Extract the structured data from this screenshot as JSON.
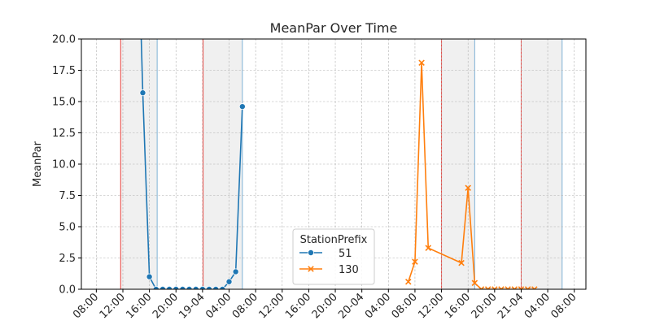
{
  "chart_data": {
    "type": "line",
    "title": "MeanPar Over Time",
    "xlabel": "",
    "ylabel": "MeanPar",
    "ylim": [
      0,
      20
    ],
    "xlim": [
      "2023-03-18T05:45",
      "2023-03-21T09:45"
    ],
    "yticks": [
      0.0,
      2.5,
      5.0,
      7.5,
      10.0,
      12.5,
      15.0,
      17.5,
      20.0
    ],
    "ytick_labels": [
      "0.0",
      "2.5",
      "5.0",
      "7.5",
      "10.0",
      "12.5",
      "15.0",
      "17.5",
      "20.0"
    ],
    "xticks": [
      "2023-03-18T08:00",
      "2023-03-18T12:00",
      "2023-03-18T16:00",
      "2023-03-18T20:00",
      "2023-03-19T00:00",
      "2023-03-19T04:00",
      "2023-03-19T08:00",
      "2023-03-19T12:00",
      "2023-03-19T16:00",
      "2023-03-19T20:00",
      "2023-03-20T00:00",
      "2023-03-20T04:00",
      "2023-03-20T08:00",
      "2023-03-20T12:00",
      "2023-03-20T16:00",
      "2023-03-20T20:00",
      "2023-03-21T00:00",
      "2023-03-21T04:00",
      "2023-03-21T08:00"
    ],
    "xtick_labels": [
      "08:00",
      "12:00",
      "16:00",
      "20:00",
      "19-04",
      "04:00",
      "08:00",
      "12:00",
      "16:00",
      "20:00",
      "20-04",
      "04:00",
      "08:00",
      "12:00",
      "16:00",
      "20:00",
      "21-04",
      "04:00",
      "08:00"
    ],
    "grid": true,
    "legend": {
      "title": "StationPrefix",
      "placement": "lower-center"
    },
    "night_spans": [
      {
        "start": "2023-03-18T11:40",
        "end": "2023-03-18T17:10"
      },
      {
        "start": "2023-03-19T00:05",
        "end": "2023-03-19T06:00"
      },
      {
        "start": "2023-03-20T12:00",
        "end": "2023-03-20T17:00"
      },
      {
        "start": "2023-03-21T00:00",
        "end": "2023-03-21T06:10"
      }
    ],
    "span_colors": {
      "start_line": "#e8413c",
      "end_line": "#7fb2d5",
      "fill": "#f0f0f0"
    },
    "series": [
      {
        "name": "51",
        "color": "#1f77b4",
        "marker": "circle",
        "points": [
          {
            "x": "2023-03-18T14:30",
            "y": 25.0,
            "marker": false
          },
          {
            "x": "2023-03-18T15:00",
            "y": 15.7
          },
          {
            "x": "2023-03-18T16:00",
            "y": 1.0
          },
          {
            "x": "2023-03-18T17:00",
            "y": 0.0
          },
          {
            "x": "2023-03-18T18:00",
            "y": 0.0
          },
          {
            "x": "2023-03-18T19:00",
            "y": 0.0
          },
          {
            "x": "2023-03-18T20:00",
            "y": 0.0
          },
          {
            "x": "2023-03-18T21:00",
            "y": 0.0
          },
          {
            "x": "2023-03-18T22:00",
            "y": 0.0
          },
          {
            "x": "2023-03-18T23:00",
            "y": 0.0
          },
          {
            "x": "2023-03-19T00:00",
            "y": 0.0
          },
          {
            "x": "2023-03-19T01:00",
            "y": 0.0
          },
          {
            "x": "2023-03-19T02:00",
            "y": 0.0
          },
          {
            "x": "2023-03-19T03:00",
            "y": 0.0
          },
          {
            "x": "2023-03-19T04:00",
            "y": 0.6
          },
          {
            "x": "2023-03-19T05:00",
            "y": 1.4
          },
          {
            "x": "2023-03-19T06:00",
            "y": 14.6
          }
        ]
      },
      {
        "name": "130",
        "color": "#ff7f0e",
        "marker": "x",
        "points": [
          {
            "x": "2023-03-20T07:00",
            "y": 0.6
          },
          {
            "x": "2023-03-20T08:00",
            "y": 2.2
          },
          {
            "x": "2023-03-20T09:00",
            "y": 18.1
          },
          {
            "x": "2023-03-20T10:00",
            "y": 3.3
          },
          {
            "x": "2023-03-20T15:00",
            "y": 2.1
          },
          {
            "x": "2023-03-20T16:00",
            "y": 8.1
          },
          {
            "x": "2023-03-20T17:00",
            "y": 0.5
          },
          {
            "x": "2023-03-20T18:00",
            "y": 0.0
          },
          {
            "x": "2023-03-20T19:00",
            "y": 0.0
          },
          {
            "x": "2023-03-20T20:00",
            "y": 0.0
          },
          {
            "x": "2023-03-20T21:00",
            "y": 0.0
          },
          {
            "x": "2023-03-20T22:00",
            "y": 0.0
          },
          {
            "x": "2023-03-20T23:00",
            "y": 0.0
          },
          {
            "x": "2023-03-21T00:00",
            "y": 0.0
          },
          {
            "x": "2023-03-21T01:00",
            "y": 0.0
          },
          {
            "x": "2023-03-21T02:00",
            "y": 0.0
          }
        ]
      }
    ]
  }
}
